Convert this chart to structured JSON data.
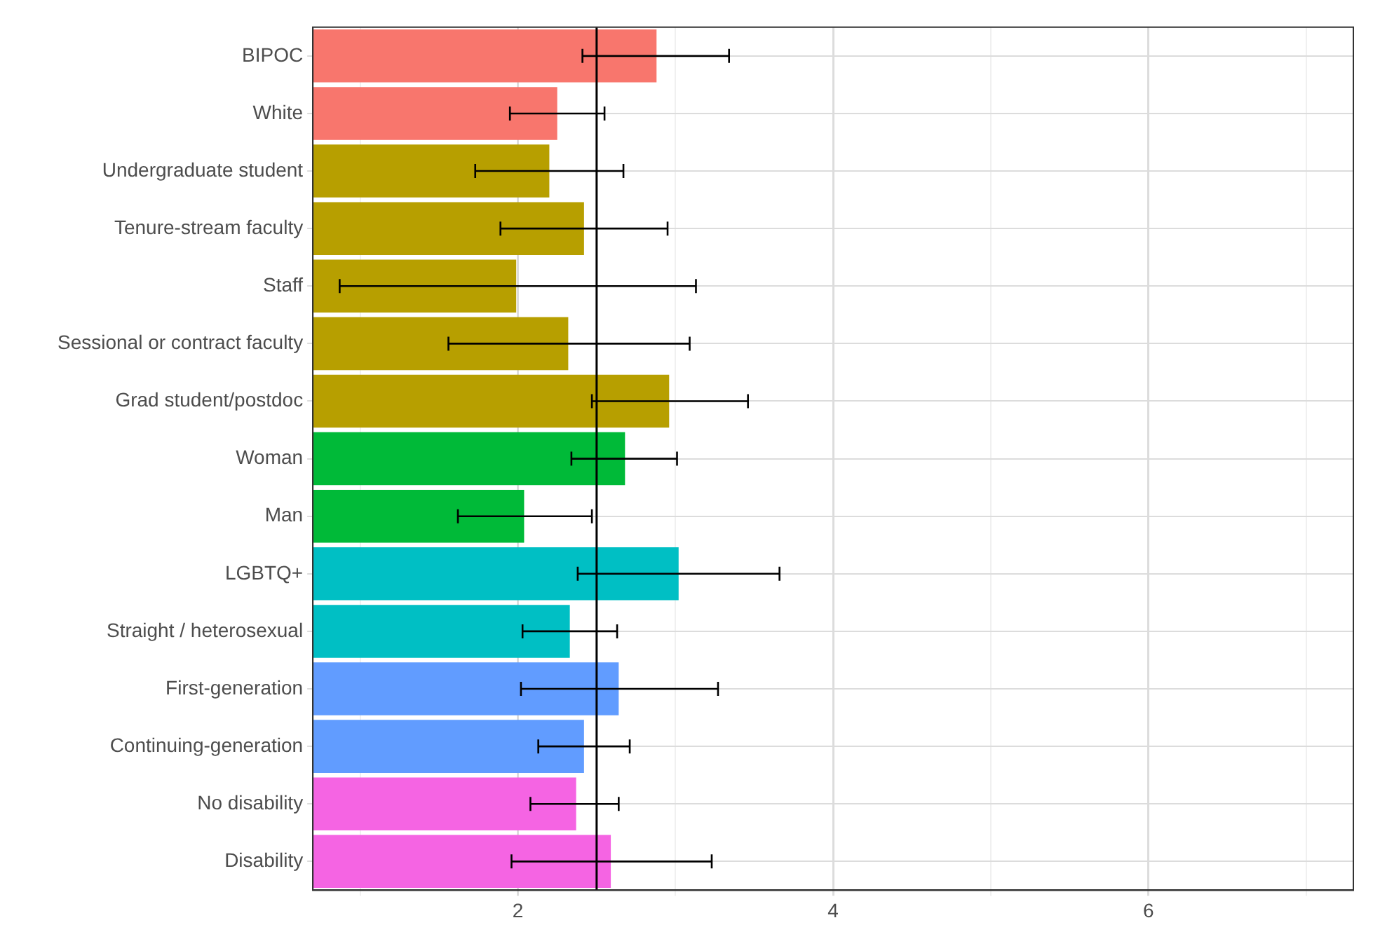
{
  "chart_data": {
    "type": "bar",
    "orientation": "horizontal",
    "categories": [
      "BIPOC",
      "White",
      "Undergraduate student",
      "Tenure-stream faculty",
      "Staff",
      "Sessional or contract faculty",
      "Grad student/postdoc",
      "Woman",
      "Man",
      "LGBTQ+",
      "Straight / heterosexual",
      "First-generation",
      "Continuing-generation",
      "No disability",
      "Disability"
    ],
    "values": [
      2.88,
      2.25,
      2.2,
      2.42,
      1.99,
      2.32,
      2.96,
      2.68,
      2.04,
      3.02,
      2.33,
      2.64,
      2.42,
      2.37,
      2.59
    ],
    "errors": [
      [
        2.41,
        3.34
      ],
      [
        1.95,
        2.55
      ],
      [
        1.73,
        2.67
      ],
      [
        1.89,
        2.95
      ],
      [
        0.87,
        3.13
      ],
      [
        1.56,
        3.09
      ],
      [
        2.47,
        3.46
      ],
      [
        2.34,
        3.01
      ],
      [
        1.62,
        2.47
      ],
      [
        2.38,
        3.66
      ],
      [
        2.03,
        2.63
      ],
      [
        2.02,
        3.27
      ],
      [
        2.13,
        2.71
      ],
      [
        2.08,
        2.64
      ],
      [
        1.96,
        3.23
      ]
    ],
    "colors": [
      "#f8766d",
      "#f8766d",
      "#b79f00",
      "#b79f00",
      "#b79f00",
      "#b79f00",
      "#b79f00",
      "#00ba38",
      "#00ba38",
      "#00bfc4",
      "#00bfc4",
      "#619cff",
      "#619cff",
      "#f564e3",
      "#f564e3"
    ],
    "xlim": [
      0.7,
      7.3
    ],
    "xticks": [
      {
        "value": 1,
        "label": null
      },
      2,
      {
        "value": 3,
        "label": null
      },
      4,
      {
        "value": 5,
        "label": null
      },
      6,
      {
        "value": 7,
        "label": null
      }
    ],
    "ref_lines": [
      {
        "axis": "x",
        "value": 2.5,
        "color": "#000000"
      }
    ],
    "grid": true,
    "legend": false
  }
}
